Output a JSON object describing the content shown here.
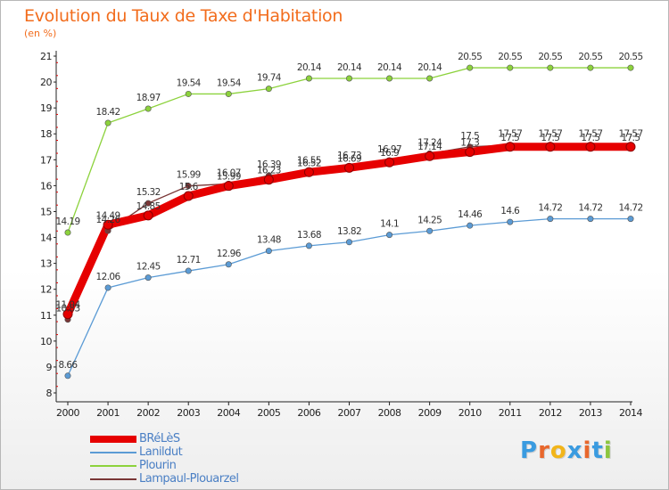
{
  "header": {
    "title": "Evolution du Taux de Taxe d'Habitation",
    "subtitle": "(en %)"
  },
  "logo": {
    "text": "Proxiti",
    "colors": [
      "#3a9be0",
      "#e8672c",
      "#f2b51a",
      "#3a9be0",
      "#e8672c",
      "#3a9be0",
      "#8cc63f"
    ]
  },
  "chart_data": {
    "type": "line",
    "categories": [
      "2000",
      "2001",
      "2002",
      "2003",
      "2004",
      "2005",
      "2006",
      "2007",
      "2008",
      "2009",
      "2010",
      "2011",
      "2012",
      "2013",
      "2014"
    ],
    "ylim": [
      8,
      21
    ],
    "yticks": [
      8,
      9,
      10,
      11,
      12,
      13,
      14,
      15,
      16,
      17,
      18,
      19,
      20,
      21
    ],
    "grid": false,
    "legend_position": "bottom-left",
    "series": [
      {
        "name": "BRéLèS",
        "color": "#e60000",
        "values": [
          11.04,
          14.49,
          14.85,
          15.6,
          15.99,
          16.23,
          16.52,
          16.69,
          16.9,
          17.14,
          17.3,
          17.5,
          17.5,
          17.5,
          17.5
        ],
        "labels": [
          "11.04",
          "14.49",
          "14.85",
          "15.6",
          "15.99",
          "16.23",
          "16.52",
          "16.69",
          "16.9",
          "17.14",
          "17.3",
          "17.5",
          "17.5",
          "17.5",
          "17.5"
        ]
      },
      {
        "name": "Lanildut",
        "color": "#5b9bd5",
        "values": [
          8.66,
          12.06,
          12.45,
          12.71,
          12.96,
          13.48,
          13.68,
          13.82,
          14.1,
          14.25,
          14.46,
          14.6,
          14.72,
          14.72,
          14.72
        ],
        "labels": [
          "8.66",
          "12.06",
          "12.45",
          "12.71",
          "12.96",
          "13.48",
          "13.68",
          "13.82",
          "14.1",
          "14.25",
          "14.46",
          "14.6",
          "14.72",
          "14.72",
          "14.72"
        ]
      },
      {
        "name": "Plourin",
        "color": "#8cd23c",
        "values": [
          14.19,
          18.42,
          18.97,
          19.54,
          19.54,
          19.74,
          20.14,
          20.14,
          20.14,
          20.14,
          20.55,
          20.55,
          20.55,
          20.55,
          20.55
        ],
        "labels": [
          "14.19",
          "18.42",
          "18.97",
          "19.54",
          "19.54",
          "19.74",
          "20.14",
          "20.14",
          "20.14",
          "20.14",
          "20.55",
          "20.55",
          "20.55",
          "20.55",
          "20.55"
        ]
      },
      {
        "name": "Lampaul-Plouarzel",
        "color": "#7a3636",
        "values": [
          10.83,
          14.26,
          15.32,
          15.99,
          16.07,
          16.39,
          16.55,
          16.73,
          16.97,
          17.24,
          17.5,
          17.57,
          17.57,
          17.57,
          17.57
        ],
        "labels": [
          "10.83",
          "14.26",
          "15.32",
          "15.99",
          "16.07",
          "16.39",
          "16.55",
          "16.73",
          "16.97",
          "17.24",
          "17.5",
          "17.57",
          "17.57",
          "17.57",
          "17.57"
        ]
      }
    ]
  }
}
